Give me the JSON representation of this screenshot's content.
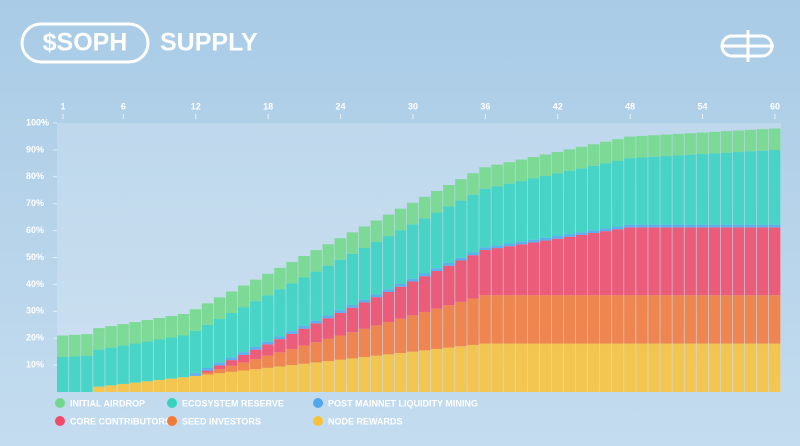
{
  "chart_data": {
    "type": "stacked-step-area",
    "title": "$SOPH",
    "subtitle": "SUPPLY",
    "x": [
      1,
      2,
      3,
      4,
      5,
      6,
      7,
      8,
      9,
      10,
      11,
      12,
      13,
      14,
      15,
      16,
      17,
      18,
      19,
      20,
      21,
      22,
      23,
      24,
      25,
      26,
      27,
      28,
      29,
      30,
      31,
      32,
      33,
      34,
      35,
      36,
      37,
      38,
      39,
      40,
      41,
      42,
      43,
      44,
      45,
      46,
      47,
      48,
      49,
      50,
      51,
      52,
      53,
      54,
      55,
      56,
      57,
      58,
      59,
      60
    ],
    "xlim": [
      0.5,
      60.5
    ],
    "xticks": [
      1,
      6,
      12,
      18,
      24,
      30,
      36,
      42,
      48,
      54,
      60
    ],
    "ylim": [
      0,
      100
    ],
    "yticks": [
      {
        "value": 10,
        "label": "10%"
      },
      {
        "value": 20,
        "label": "20%"
      },
      {
        "value": 30,
        "label": "30%"
      },
      {
        "value": 40,
        "label": "40%"
      },
      {
        "value": 50,
        "label": "50%"
      },
      {
        "value": 60,
        "label": "60%"
      },
      {
        "value": 70,
        "label": "70%"
      },
      {
        "value": 80,
        "label": "80%"
      },
      {
        "value": 90,
        "label": "90%"
      },
      {
        "value": 100,
        "label": "100%"
      }
    ],
    "series": [
      {
        "name": "INITIAL AIRDROP",
        "color": "#72d98a",
        "values": [
          8,
          8,
          8,
          8,
          8,
          8,
          8,
          8,
          8,
          8,
          8,
          8,
          8,
          8,
          8,
          8,
          8,
          8,
          8,
          8,
          8,
          8,
          8,
          8,
          8,
          8,
          8,
          8,
          8,
          8,
          8,
          8,
          8,
          8,
          8,
          8,
          8,
          8,
          8,
          8,
          8,
          8,
          8,
          8,
          8,
          8,
          8,
          8,
          8,
          8,
          8,
          8,
          8,
          8,
          8,
          8,
          8,
          8,
          8,
          8
        ]
      },
      {
        "name": "ECOSYSTEM RESERVE",
        "color": "#36d3c0",
        "values": [
          13,
          13.25,
          13.5,
          13.75,
          14,
          14.25,
          14.5,
          14.75,
          15,
          15.25,
          15.5,
          15.75,
          16,
          16.25,
          16.5,
          16.75,
          17,
          17.25,
          17.5,
          17.75,
          18,
          18.25,
          18.5,
          18.75,
          19,
          19.25,
          19.5,
          19.75,
          20,
          20.25,
          20.5,
          20.75,
          21,
          21.25,
          21.5,
          21.75,
          22,
          22.25,
          22.5,
          22.75,
          23,
          23.25,
          23.5,
          23.75,
          24,
          24.25,
          24.5,
          24.75,
          25,
          25.25,
          25.5,
          25.75,
          26,
          26.25,
          26.5,
          26.75,
          27,
          27.25,
          27.5,
          27.75
        ]
      },
      {
        "name": "POST MAINNET LIQUIDITY MINING",
        "color": "#4fa8ec",
        "values": [
          0,
          0,
          0,
          0,
          0,
          0,
          0,
          0,
          0,
          0,
          0,
          1,
          1,
          1,
          1,
          1,
          1,
          1,
          1,
          1,
          1,
          1,
          1,
          1,
          1,
          1,
          1,
          1,
          1,
          1,
          1,
          1,
          1,
          1,
          1,
          1,
          1,
          1,
          1,
          1,
          1,
          1,
          1,
          1,
          1,
          1,
          1,
          1,
          1,
          1,
          1,
          1,
          1,
          1,
          1,
          1,
          1,
          1,
          1,
          1
        ]
      },
      {
        "name": "CORE CONTRIBUTORS",
        "color": "#f04a6a",
        "values": [
          0,
          0,
          0,
          0,
          0,
          0,
          0,
          0,
          0,
          0,
          0,
          0,
          0.7,
          1.4,
          2.1,
          2.8,
          3.5,
          4.2,
          4.9,
          5.6,
          6.3,
          7,
          7.7,
          8.4,
          9.1,
          9.8,
          10.5,
          11.2,
          11.9,
          12.6,
          13.3,
          14,
          14.7,
          15.4,
          16.1,
          16.8,
          17.5,
          18.2,
          18.9,
          19.6,
          20.3,
          21,
          21.7,
          22.4,
          23.1,
          23.8,
          24.5,
          25.2,
          25.2,
          25.2,
          25.2,
          25.2,
          25.2,
          25.2,
          25.2,
          25.2,
          25.2,
          25.2,
          25.2,
          25.2
        ]
      },
      {
        "name": "SEED INVESTORS",
        "color": "#f47a3a",
        "values": [
          0,
          0,
          0,
          0,
          0,
          0,
          0,
          0,
          0,
          0,
          0,
          0,
          0.75,
          1.5,
          2.25,
          3,
          3.75,
          4.5,
          5.25,
          6,
          6.75,
          7.5,
          8.25,
          9,
          9.75,
          10.5,
          11.25,
          12,
          12.75,
          13.5,
          14.25,
          15,
          15.75,
          16.5,
          17.25,
          18,
          18,
          18,
          18,
          18,
          18,
          18,
          18,
          18,
          18,
          18,
          18,
          18,
          18,
          18,
          18,
          18,
          18,
          18,
          18,
          18,
          18,
          18,
          18,
          18
        ]
      },
      {
        "name": "NODE REWARDS",
        "color": "#f7c23a",
        "values": [
          0,
          0,
          0,
          2,
          2.5,
          3,
          3.5,
          4,
          4.5,
          5,
          5.5,
          6,
          6.5,
          7,
          7.5,
          8,
          8.5,
          9,
          9.5,
          10,
          10.5,
          11,
          11.5,
          12,
          12.5,
          13,
          13.5,
          14,
          14.5,
          15,
          15.5,
          16,
          16.5,
          17,
          17.5,
          18,
          18,
          18,
          18,
          18,
          18,
          18,
          18,
          18,
          18,
          18,
          18,
          18,
          18,
          18,
          18,
          18,
          18,
          18,
          18,
          18,
          18,
          18,
          18,
          18
        ]
      }
    ]
  }
}
